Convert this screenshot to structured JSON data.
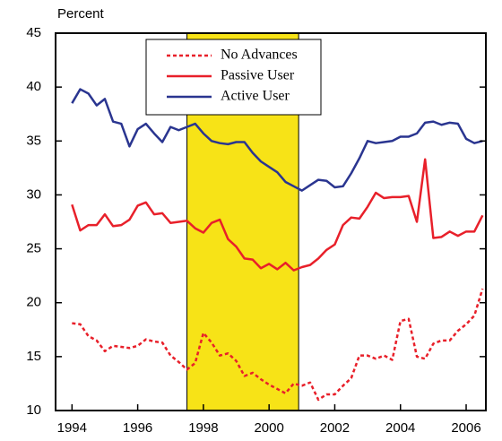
{
  "chart_data": {
    "type": "line",
    "y_label": "Percent",
    "x": [
      1994,
      1994.25,
      1994.5,
      1994.75,
      1995,
      1995.25,
      1995.5,
      1995.75,
      1996,
      1996.25,
      1996.5,
      1996.75,
      1997,
      1997.25,
      1997.5,
      1997.75,
      1998,
      1998.25,
      1998.5,
      1998.75,
      1999,
      1999.25,
      1999.5,
      1999.75,
      2000,
      2000.25,
      2000.5,
      2000.75,
      2001,
      2001.25,
      2001.5,
      2001.75,
      2002,
      2002.25,
      2002.5,
      2002.75,
      2003,
      2003.25,
      2003.5,
      2003.75,
      2004,
      2004.25,
      2004.5,
      2004.75,
      2005,
      2005.25,
      2005.5,
      2005.75,
      2006,
      2006.25,
      2006.5
    ],
    "series": [
      {
        "name": "No Advances",
        "color": "#e8202a",
        "dash": true,
        "values": [
          18.1,
          18.0,
          16.9,
          16.5,
          15.5,
          16.0,
          15.9,
          15.8,
          16.0,
          16.6,
          16.4,
          16.3,
          15.1,
          14.5,
          13.8,
          14.4,
          17.2,
          16.3,
          15.1,
          15.3,
          14.6,
          13.2,
          13.5,
          12.9,
          12.4,
          12.0,
          11.6,
          12.5,
          12.3,
          12.6,
          11.0,
          11.5,
          11.5,
          12.3,
          13.0,
          15.1,
          15.1,
          14.8,
          15.1,
          14.7,
          18.3,
          18.5,
          15.0,
          14.8,
          16.2,
          16.5,
          16.5,
          17.4,
          18.0,
          18.8,
          21.3
        ]
      },
      {
        "name": "Passive User",
        "color": "#e8202a",
        "dash": false,
        "values": [
          29.1,
          26.7,
          27.2,
          27.2,
          28.2,
          27.1,
          27.2,
          27.7,
          29.0,
          29.3,
          28.2,
          28.3,
          27.4,
          27.5,
          27.6,
          26.9,
          26.5,
          27.4,
          27.7,
          25.9,
          25.2,
          24.1,
          24.0,
          23.2,
          23.6,
          23.1,
          23.7,
          23.0,
          23.3,
          23.5,
          24.1,
          24.9,
          25.4,
          27.2,
          27.9,
          27.8,
          28.9,
          30.2,
          29.7,
          29.8,
          29.8,
          29.9,
          27.5,
          33.3,
          26.0,
          26.1,
          26.6,
          26.2,
          26.6,
          26.6,
          28.1
        ]
      },
      {
        "name": "Active User",
        "color": "#2a3590",
        "dash": false,
        "values": [
          38.5,
          39.8,
          39.4,
          38.3,
          38.9,
          36.8,
          36.6,
          34.5,
          36.1,
          36.6,
          35.7,
          34.9,
          36.3,
          36.0,
          36.3,
          36.6,
          35.7,
          35.0,
          34.8,
          34.7,
          34.9,
          34.9,
          33.9,
          33.1,
          32.6,
          32.1,
          31.2,
          30.8,
          30.4,
          30.9,
          31.4,
          31.3,
          30.7,
          30.8,
          32.0,
          33.4,
          35.0,
          34.8,
          34.9,
          35.0,
          35.4,
          35.4,
          35.7,
          36.7,
          36.8,
          36.5,
          36.7,
          36.6,
          35.2,
          34.8,
          35.0
        ]
      }
    ],
    "shade": [
      1997.5,
      2000.9
    ],
    "shade_color": "#f7e317",
    "xlim": [
      1993.5,
      2006.6
    ],
    "xticks": [
      1994,
      1996,
      1998,
      2000,
      2002,
      2004,
      2006
    ],
    "ylim": [
      10,
      45
    ],
    "yticks": [
      10,
      15,
      20,
      25,
      30,
      35,
      40,
      45
    ],
    "grid": false
  }
}
